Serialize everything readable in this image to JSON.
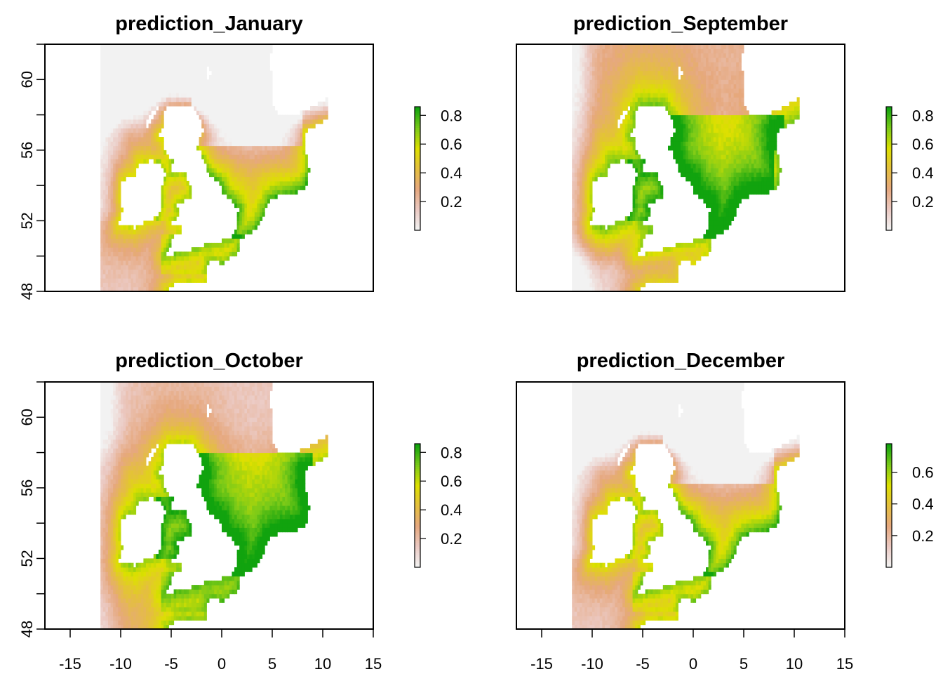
{
  "figure": {
    "panels": [
      {
        "title": "prediction_January",
        "colorbar": {
          "ticks": [
            "0.2",
            "0.4",
            "0.6",
            "0.8"
          ],
          "tick_values": [
            0.2,
            0.4,
            0.6,
            0.8
          ],
          "range": [
            0.0,
            0.86
          ]
        },
        "pattern": "winter"
      },
      {
        "title": "prediction_September",
        "colorbar": {
          "ticks": [
            "0.2",
            "0.4",
            "0.6",
            "0.8"
          ],
          "tick_values": [
            0.2,
            0.4,
            0.6,
            0.8
          ],
          "range": [
            0.0,
            0.86
          ]
        },
        "pattern": "autumn_high"
      },
      {
        "title": "prediction_October",
        "colorbar": {
          "ticks": [
            "0.2",
            "0.4",
            "0.6",
            "0.8"
          ],
          "tick_values": [
            0.2,
            0.4,
            0.6,
            0.8
          ],
          "range": [
            0.0,
            0.86
          ]
        },
        "pattern": "autumn_mid"
      },
      {
        "title": "prediction_December",
        "colorbar": {
          "ticks": [
            "0.2",
            "0.4",
            "0.6"
          ],
          "tick_values": [
            0.2,
            0.4,
            0.6
          ],
          "range": [
            0.0,
            0.78
          ]
        },
        "pattern": "winter"
      }
    ],
    "x_axis": {
      "ticks": [
        "-15",
        "-10",
        "-5",
        "0",
        "5",
        "10",
        "15"
      ],
      "tick_values": [
        -15,
        -10,
        -5,
        0,
        5,
        10,
        15
      ],
      "range": [
        -17.5,
        15
      ]
    },
    "y_axis": {
      "ticks": [
        "48",
        "52",
        "56",
        "60"
      ],
      "tick_values": [
        48,
        52,
        56,
        60
      ],
      "minor_ticks": [
        50,
        54,
        58,
        62
      ],
      "range": [
        48,
        62
      ]
    },
    "raster": {
      "lon_range": [
        -12,
        10.5
      ],
      "lat_range": [
        48,
        62
      ]
    },
    "colors": {
      "palette": [
        "#F2F2F2",
        "#EBC9C2",
        "#E6A87E",
        "#E4BF3E",
        "#DDE000",
        "#7BCA18",
        "#11A30E"
      ],
      "land": "#FFFFFF"
    }
  }
}
